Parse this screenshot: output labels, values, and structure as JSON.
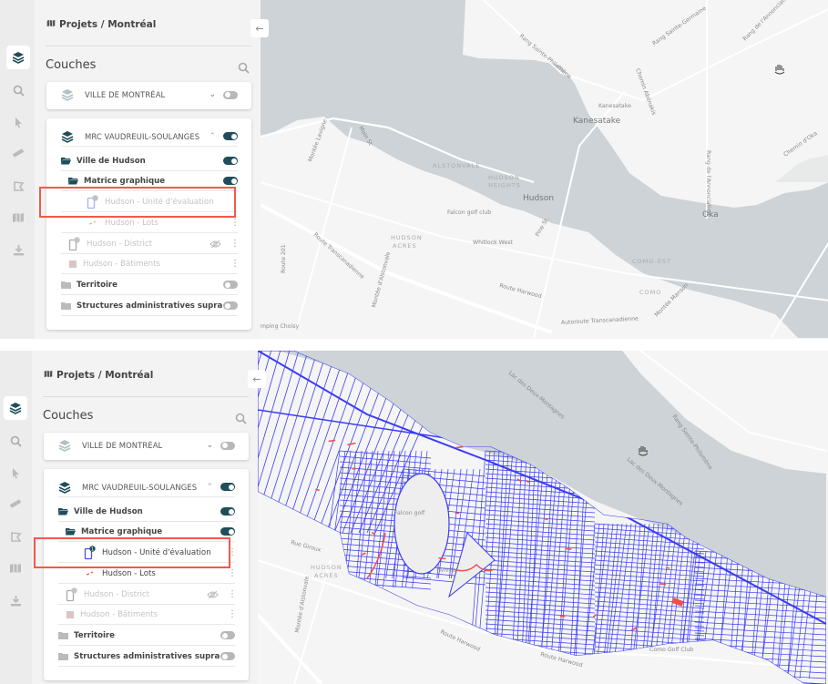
{
  "colors": {
    "accent": "#1f4e5a",
    "highlight": "#f05a4a",
    "parcel_line": "#3a3cf5",
    "parcel_alert": "#f0504a",
    "water": "#cdd3d6",
    "land": "#f5f5f5"
  },
  "views": [
    {
      "breadcrumb": "Projets / Montréal",
      "panel_title": "Couches",
      "rail_icons": [
        "layers-icon",
        "search-icon",
        "pointer-icon",
        "ruler-icon",
        "polygon-select-icon",
        "map-icon",
        "download-icon"
      ],
      "groups": [
        {
          "label": "VILLE DE MONTRÉAL",
          "expanded": false,
          "enabled": false
        },
        {
          "label": "MRC VAUDREUIL-SOULANGES",
          "expanded": true,
          "enabled": true,
          "children": [
            {
              "label": "Ville de Hudson",
              "type": "folder-open",
              "enabled": true
            },
            {
              "label": "Matrice graphique",
              "type": "folder-open",
              "enabled": true
            },
            {
              "label": "Hudson - Unité d'évaluation",
              "type": "layer-polygon",
              "badge": "",
              "dim": true,
              "highlighted": true
            },
            {
              "label": "Hudson - Lots",
              "type": "layer-line",
              "dim": true
            },
            {
              "label": "Hudson - District",
              "type": "layer-polygon-gray",
              "badge": "",
              "dim": true,
              "hidden": true
            },
            {
              "label": "Hudson - Bâtiments",
              "type": "layer-fill",
              "dim": true
            },
            {
              "label": "Territoire",
              "type": "folder",
              "enabled": false
            },
            {
              "label": "Structures administratives supra-locales",
              "type": "folder",
              "enabled": false
            }
          ]
        }
      ],
      "map_labels": [
        "Rang Sainte-Philomène",
        "Rang Sainte-Germaine",
        "Rang de l'Annonciation",
        "Rang de l'Annonciation",
        "Kanesatake",
        "Kanesatake",
        "Oka",
        "Chemin d'Oka",
        "ALSTONVALE",
        "HUDSON",
        "HEIGHTS",
        "Hudson",
        "Falcon golf club",
        "Whitlock West",
        "HUDSON",
        "ACRES",
        "Route Transcanadienne",
        "Route Harwood",
        "Autoroute Transcanadienne",
        "Main St",
        "Montée Lavigne",
        "Route 201",
        "Pine St",
        "COMO-EST",
        "COMO",
        "Montée Manson",
        "mping Choisy",
        "Montée d'Alstonvale",
        "Chemin Abénakis"
      ],
      "parcels_visible": false
    },
    {
      "breadcrumb": "Projets / Montréal",
      "panel_title": "Couches",
      "rail_icons": [
        "layers-icon",
        "search-icon",
        "pointer-icon",
        "ruler-icon",
        "polygon-select-icon",
        "map-icon",
        "download-icon"
      ],
      "groups": [
        {
          "label": "VILLE DE MONTRÉAL",
          "expanded": false,
          "enabled": false
        },
        {
          "label": "MRC VAUDREUIL-SOULANGES",
          "expanded": true,
          "enabled": true,
          "children": [
            {
              "label": "Ville de Hudson",
              "type": "folder-open",
              "enabled": true
            },
            {
              "label": "Matrice graphique",
              "type": "folder-open",
              "enabled": true
            },
            {
              "label": "Hudson - Unité d'évaluation",
              "type": "layer-polygon",
              "badge": "1",
              "dim": false,
              "highlighted": true
            },
            {
              "label": "Hudson - Lots",
              "type": "layer-line",
              "dim": false
            },
            {
              "label": "Hudson - District",
              "type": "layer-polygon-gray",
              "badge": "",
              "dim": true,
              "hidden": true
            },
            {
              "label": "Hudson - Bâtiments",
              "type": "layer-fill",
              "dim": true
            },
            {
              "label": "Territoire",
              "type": "folder",
              "enabled": false
            },
            {
              "label": "Structures administratives supra-locales",
              "type": "folder",
              "enabled": false
            }
          ]
        }
      ],
      "map_labels": [
        "Lac des Deux-Montagnes",
        "Lac des Deux-Montagnes",
        "Rang Sainte-Philomène",
        "Falcon golf",
        "HUDSON",
        "ACRES",
        "Rue Giroux",
        "Route Harwood",
        "Route Harwood",
        "Montée d'Alstonvale",
        "Como Golf Club",
        "Whitlo"
      ],
      "parcels_visible": true
    }
  ]
}
